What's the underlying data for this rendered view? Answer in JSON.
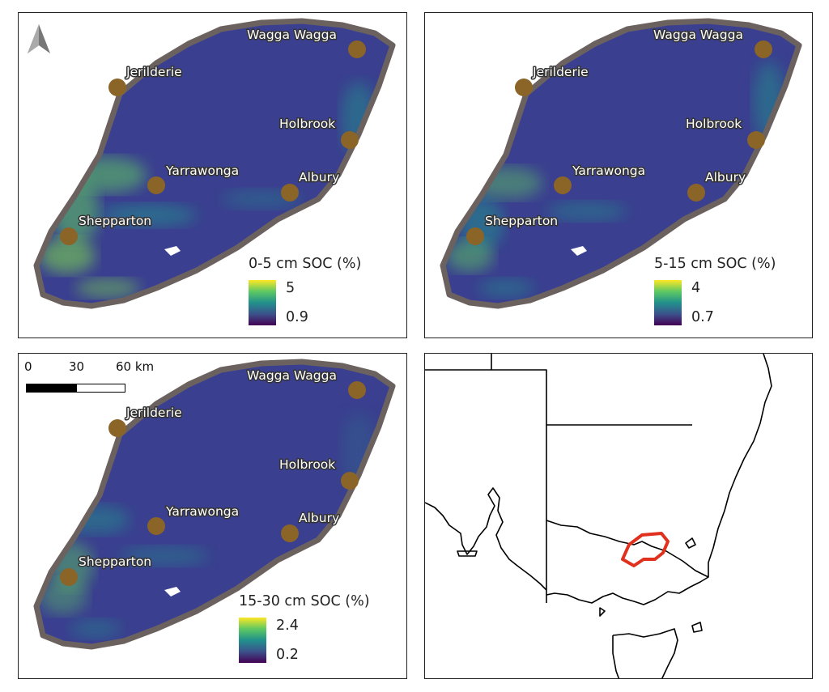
{
  "towns": [
    {
      "id": "wagga-wagga",
      "name": "Wagga Wagga"
    },
    {
      "id": "jerilderie",
      "name": "Jerilderie"
    },
    {
      "id": "holbrook",
      "name": "Holbrook"
    },
    {
      "id": "yarrawonga",
      "name": "Yarrawonga"
    },
    {
      "id": "albury",
      "name": "Albury"
    },
    {
      "id": "shepparton",
      "name": "Shepparton"
    }
  ],
  "panels": [
    {
      "id": "soc-0-5",
      "legend_title": "0-5 cm SOC (%)",
      "legend_max": "5",
      "legend_min": "0.9"
    },
    {
      "id": "soc-5-15",
      "legend_title": "5-15 cm SOC (%)",
      "legend_max": "4",
      "legend_min": "0.7"
    },
    {
      "id": "soc-15-30",
      "legend_title": "15-30 cm SOC (%)",
      "legend_max": "2.4",
      "legend_min": "0.2"
    }
  ],
  "scale_bar": {
    "labels": [
      "0",
      "30",
      "60 km"
    ]
  },
  "colors": {
    "colormap": [
      "#440154",
      "#3b528b",
      "#21918c",
      "#5ec962",
      "#fde725"
    ],
    "region_fill": "#3a3f8f",
    "boundary": "#6b6260",
    "town_marker": "#8b6428",
    "study_area_outline": "#e0301e"
  },
  "icons": {
    "north_arrow": "north-arrow-icon"
  }
}
